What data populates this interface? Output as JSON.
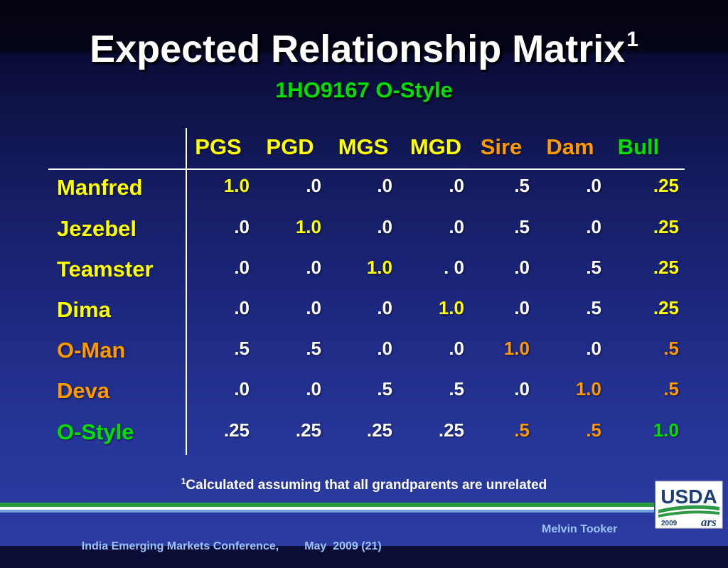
{
  "slide": {
    "title": "Expected Relationship Matrix",
    "title_footnote_marker": "1",
    "subtitle": "1HO9167 O-Style"
  },
  "colors": {
    "title": "#ffffff",
    "subtitle": "#00e000",
    "footer_text": "#9cc3ff",
    "stripe_green": "#2a9d3f",
    "stripe_white": "#ffffff",
    "stripe_blue": "#6f9ee0",
    "logo_blue": "#1b3f7a",
    "logo_green": "#2e9a46"
  },
  "matrix": {
    "columns": [
      {
        "label": "PGS",
        "color": "#ffff00"
      },
      {
        "label": "PGD",
        "color": "#ffff00"
      },
      {
        "label": "MGS",
        "color": "#ffff00"
      },
      {
        "label": "MGD",
        "color": "#ffff00"
      },
      {
        "label": "Sire",
        "color": "#ff9900"
      },
      {
        "label": "Dam",
        "color": "#ff9900"
      },
      {
        "label": "Bull",
        "color": "#00e000"
      }
    ],
    "rows": [
      {
        "label": "Manfred",
        "color": "#ffff00",
        "cells": [
          {
            "value": "1.0",
            "color": "#ffff00"
          },
          {
            "value": ".0",
            "color": "#ffffff"
          },
          {
            "value": ".0",
            "color": "#ffffff"
          },
          {
            "value": ".0",
            "color": "#ffffff"
          },
          {
            "value": ".5",
            "color": "#ffffff"
          },
          {
            "value": ".0",
            "color": "#ffffff"
          },
          {
            "value": ".25",
            "color": "#ffff00"
          }
        ]
      },
      {
        "label": "Jezebel",
        "color": "#ffff00",
        "cells": [
          {
            "value": ".0",
            "color": "#ffffff"
          },
          {
            "value": "1.0",
            "color": "#ffff00"
          },
          {
            "value": ".0",
            "color": "#ffffff"
          },
          {
            "value": ".0",
            "color": "#ffffff"
          },
          {
            "value": ".5",
            "color": "#ffffff"
          },
          {
            "value": ".0",
            "color": "#ffffff"
          },
          {
            "value": ".25",
            "color": "#ffff00"
          }
        ]
      },
      {
        "label": "Teamster",
        "color": "#ffff00",
        "cells": [
          {
            "value": ".0",
            "color": "#ffffff"
          },
          {
            "value": ".0",
            "color": "#ffffff"
          },
          {
            "value": "1.0",
            "color": "#ffff00"
          },
          {
            "value": ". 0",
            "color": "#ffffff"
          },
          {
            "value": ".0",
            "color": "#ffffff"
          },
          {
            "value": ".5",
            "color": "#ffffff"
          },
          {
            "value": ".25",
            "color": "#ffff00"
          }
        ]
      },
      {
        "label": "Dima",
        "color": "#ffff00",
        "cells": [
          {
            "value": ".0",
            "color": "#ffffff"
          },
          {
            "value": ".0",
            "color": "#ffffff"
          },
          {
            "value": ".0",
            "color": "#ffffff"
          },
          {
            "value": "1.0",
            "color": "#ffff00"
          },
          {
            "value": ".0",
            "color": "#ffffff"
          },
          {
            "value": ".5",
            "color": "#ffffff"
          },
          {
            "value": ".25",
            "color": "#ffff00"
          }
        ]
      },
      {
        "label": "O-Man",
        "color": "#ff9900",
        "cells": [
          {
            "value": ".5",
            "color": "#ffffff"
          },
          {
            "value": ".5",
            "color": "#ffffff"
          },
          {
            "value": ".0",
            "color": "#ffffff"
          },
          {
            "value": ".0",
            "color": "#ffffff"
          },
          {
            "value": "1.0",
            "color": "#ff9900"
          },
          {
            "value": ".0",
            "color": "#ffffff"
          },
          {
            "value": ".5",
            "color": "#ff9900"
          }
        ]
      },
      {
        "label": "Deva",
        "color": "#ff9900",
        "cells": [
          {
            "value": ".0",
            "color": "#ffffff"
          },
          {
            "value": ".0",
            "color": "#ffffff"
          },
          {
            "value": ".5",
            "color": "#ffffff"
          },
          {
            "value": ".5",
            "color": "#ffffff"
          },
          {
            "value": ".0",
            "color": "#ffffff"
          },
          {
            "value": "1.0",
            "color": "#ff9900"
          },
          {
            "value": ".5",
            "color": "#ff9900"
          }
        ]
      },
      {
        "label": "O-Style",
        "color": "#00e000",
        "cells": [
          {
            "value": ".25",
            "color": "#ffffff"
          },
          {
            "value": ".25",
            "color": "#ffffff"
          },
          {
            "value": ".25",
            "color": "#ffffff"
          },
          {
            "value": ".25",
            "color": "#ffffff"
          },
          {
            "value": ".5",
            "color": "#ff9900"
          },
          {
            "value": ".5",
            "color": "#ff9900"
          },
          {
            "value": "1.0",
            "color": "#00e000"
          }
        ]
      }
    ]
  },
  "footnote": {
    "marker": "1",
    "text": "Calculated assuming that all grandparents are unrelated"
  },
  "footer": {
    "conference": "India Emerging Markets Conference,",
    "date": "May  2009 (21)",
    "author": "Melvin Tooker"
  },
  "logo": {
    "wordmark": "USDA",
    "year": "2009",
    "agency_mark": "ars"
  }
}
